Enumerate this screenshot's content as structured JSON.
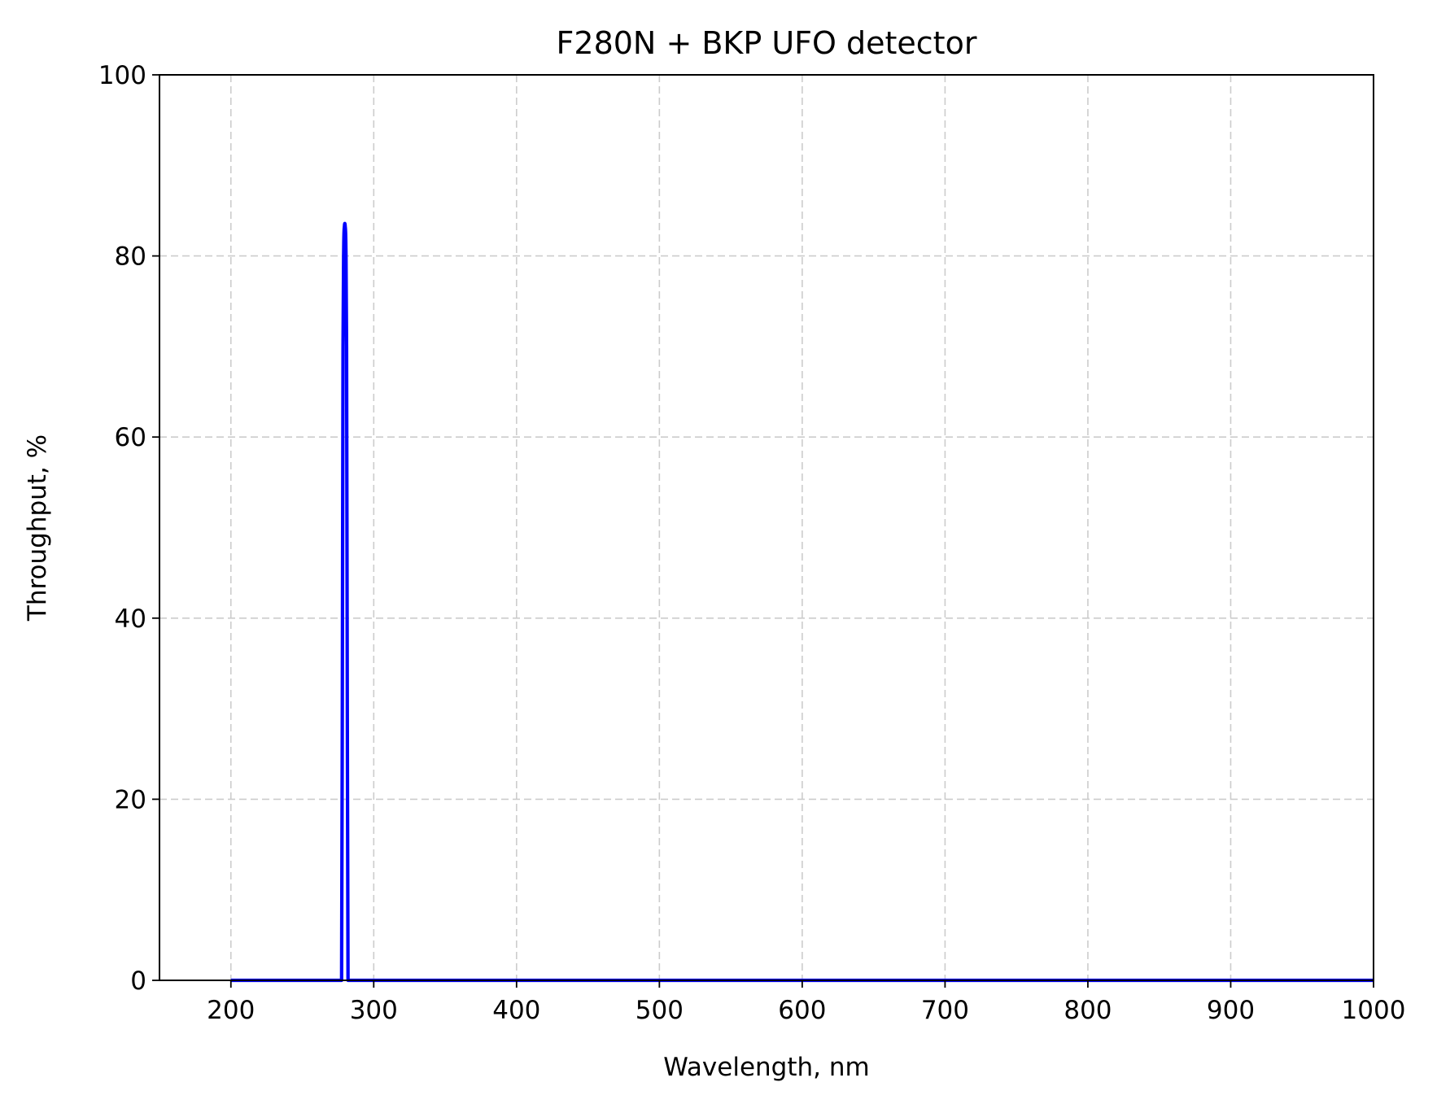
{
  "chart_data": {
    "type": "line",
    "title": "F280N + BKP UFO detector",
    "xlabel": "Wavelength, nm",
    "ylabel": "Throughput, %",
    "xlim": [
      150,
      1000
    ],
    "ylim": [
      0,
      100
    ],
    "xticks": [
      200,
      300,
      400,
      500,
      600,
      700,
      800,
      900,
      1000
    ],
    "yticks": [
      0,
      20,
      40,
      60,
      80,
      100
    ],
    "grid": true,
    "grid_style": "dashed",
    "series": [
      {
        "color": "#0000ff",
        "x": [
          200,
          270,
          275,
          276.5,
          277,
          277.5,
          278,
          278.5,
          279,
          279.5,
          280,
          280.5,
          281,
          281.5,
          282,
          282.5,
          283,
          283.5,
          285,
          300,
          400,
          500,
          600,
          700,
          800,
          900,
          1000
        ],
        "y": [
          0,
          0,
          0,
          0,
          0,
          0,
          30,
          70,
          81,
          83.3,
          83.3,
          81,
          70,
          30,
          0,
          0,
          0,
          0,
          0,
          0,
          0,
          0,
          0,
          0,
          0,
          0,
          0
        ]
      }
    ]
  }
}
